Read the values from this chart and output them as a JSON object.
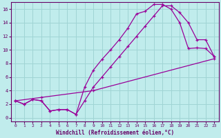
{
  "xlabel": "Windchill (Refroidissement éolien,°C)",
  "ylabel": "",
  "background_color": "#c0ecec",
  "grid_color": "#a0d4d4",
  "line_color": "#990099",
  "xlim": [
    -0.5,
    23.5
  ],
  "ylim": [
    -0.5,
    17
  ],
  "xticks": [
    0,
    1,
    2,
    3,
    4,
    5,
    6,
    7,
    8,
    9,
    10,
    11,
    12,
    13,
    14,
    15,
    16,
    17,
    18,
    19,
    20,
    21,
    22,
    23
  ],
  "yticks": [
    0,
    2,
    4,
    6,
    8,
    10,
    12,
    14,
    16
  ],
  "series1_x": [
    0,
    1,
    2,
    3,
    4,
    5,
    6,
    7,
    8,
    9,
    10,
    11,
    12,
    13,
    14,
    15,
    16,
    17,
    18,
    19,
    20,
    21,
    22,
    23
  ],
  "series1_y": [
    2.5,
    2.0,
    2.7,
    2.5,
    1.0,
    1.2,
    1.2,
    0.5,
    4.5,
    7.0,
    8.6,
    10.0,
    11.5,
    13.2,
    15.3,
    15.7,
    16.7,
    16.7,
    16.0,
    14.0,
    10.2,
    10.3,
    10.2,
    9.0
  ],
  "series2_x": [
    0,
    1,
    2,
    3,
    4,
    5,
    6,
    7,
    8,
    9,
    10,
    11,
    12,
    13,
    14,
    15,
    16,
    17,
    18,
    19,
    20,
    21,
    22,
    23
  ],
  "series2_y": [
    2.5,
    2.0,
    2.7,
    2.5,
    1.0,
    1.2,
    1.2,
    0.5,
    2.5,
    4.5,
    6.0,
    7.5,
    9.0,
    10.5,
    12.0,
    13.5,
    15.0,
    16.5,
    16.5,
    15.5,
    14.0,
    11.5,
    11.5,
    9.0
  ],
  "series3_x": [
    0,
    3,
    9,
    23
  ],
  "series3_y": [
    2.5,
    3.0,
    4.0,
    8.7
  ]
}
